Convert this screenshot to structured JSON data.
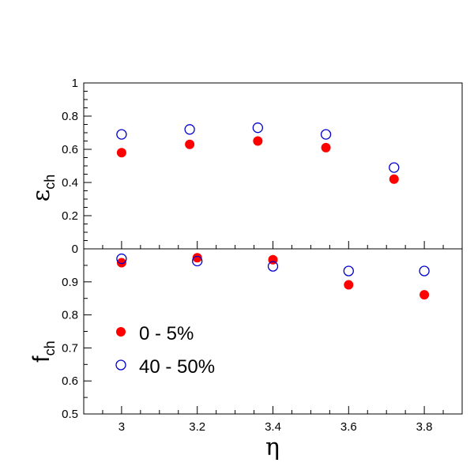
{
  "chart_data": [
    {
      "type": "scatter",
      "panel": "top",
      "ylabel": "ε",
      "ylabel_subscript": "ch",
      "ylim": [
        0,
        1
      ],
      "y_ticks": [
        0,
        0.2,
        0.4,
        0.6,
        0.8,
        1
      ],
      "y_tick_labels": [
        "0",
        "0.2",
        "0.4",
        "0.6",
        "0.8",
        "1"
      ],
      "series": [
        {
          "name": "0 - 5%",
          "marker": "filled-circle",
          "color": "#ff0000",
          "points": [
            {
              "x": 3.0,
              "y": 0.58
            },
            {
              "x": 3.18,
              "y": 0.63
            },
            {
              "x": 3.36,
              "y": 0.65
            },
            {
              "x": 3.54,
              "y": 0.61
            },
            {
              "x": 3.72,
              "y": 0.42
            }
          ]
        },
        {
          "name": "40 - 50%",
          "marker": "open-circle",
          "color": "#0000cc",
          "points": [
            {
              "x": 3.0,
              "y": 0.69
            },
            {
              "x": 3.18,
              "y": 0.72
            },
            {
              "x": 3.36,
              "y": 0.73
            },
            {
              "x": 3.54,
              "y": 0.69
            },
            {
              "x": 3.72,
              "y": 0.49
            }
          ]
        }
      ]
    },
    {
      "type": "scatter",
      "panel": "bottom",
      "xlabel": "η",
      "ylabel": "f",
      "ylabel_subscript": "ch",
      "xlim": [
        2.9,
        3.9
      ],
      "ylim": [
        0.5,
        1.0
      ],
      "x_ticks": [
        3,
        3.2,
        3.4,
        3.6,
        3.8
      ],
      "x_tick_labels": [
        "3",
        "3.2",
        "3.4",
        "3.6",
        "3.8"
      ],
      "y_ticks": [
        0.5,
        0.6,
        0.7,
        0.8,
        0.9
      ],
      "y_tick_labels": [
        "0.5",
        "0.6",
        "0.7",
        "0.8",
        "0.9"
      ],
      "legend_placement": "center-left",
      "series": [
        {
          "name": "0 - 5%",
          "marker": "filled-circle",
          "color": "#ff0000",
          "points": [
            {
              "x": 3.0,
              "y": 0.958
            },
            {
              "x": 3.2,
              "y": 0.973
            },
            {
              "x": 3.4,
              "y": 0.967
            },
            {
              "x": 3.6,
              "y": 0.891
            },
            {
              "x": 3.8,
              "y": 0.861
            }
          ]
        },
        {
          "name": "40 - 50%",
          "marker": "open-circle",
          "color": "#0000cc",
          "points": [
            {
              "x": 3.0,
              "y": 0.97
            },
            {
              "x": 3.2,
              "y": 0.963
            },
            {
              "x": 3.4,
              "y": 0.947
            },
            {
              "x": 3.6,
              "y": 0.933
            },
            {
              "x": 3.8,
              "y": 0.933
            }
          ]
        }
      ]
    }
  ]
}
